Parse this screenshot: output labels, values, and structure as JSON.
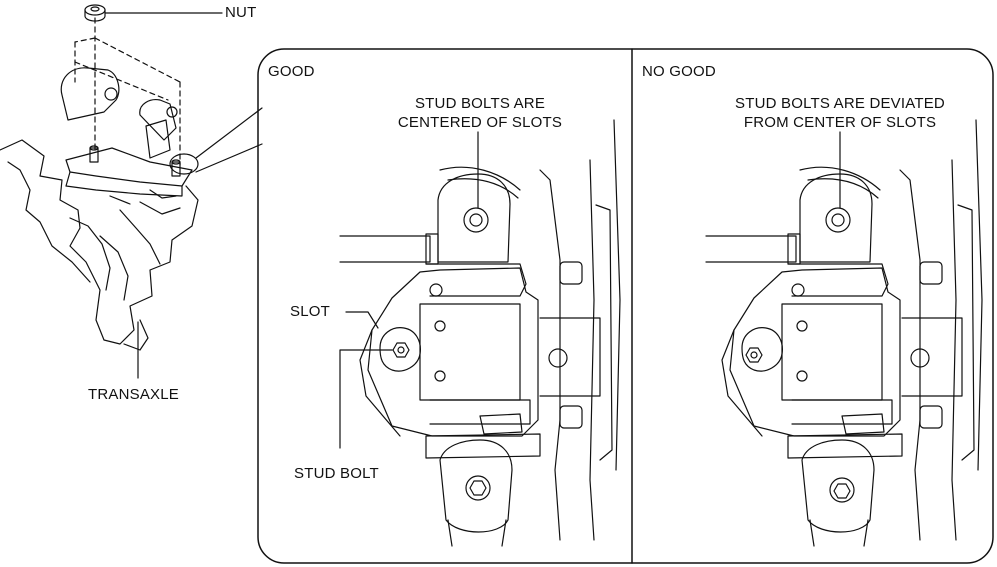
{
  "callouts": {
    "nut": "NUT",
    "transaxle": "TRANSAXLE",
    "slot": "SLOT",
    "stud_bolt": "STUD BOLT"
  },
  "panels": {
    "good": {
      "title": "GOOD",
      "note_line1": "STUD BOLTS ARE",
      "note_line2": "CENTERED OF SLOTS"
    },
    "no_good": {
      "title": "NO GOOD",
      "note_line1": "STUD BOLTS ARE DEVIATED",
      "note_line2": "FROM CENTER OF SLOTS"
    }
  }
}
